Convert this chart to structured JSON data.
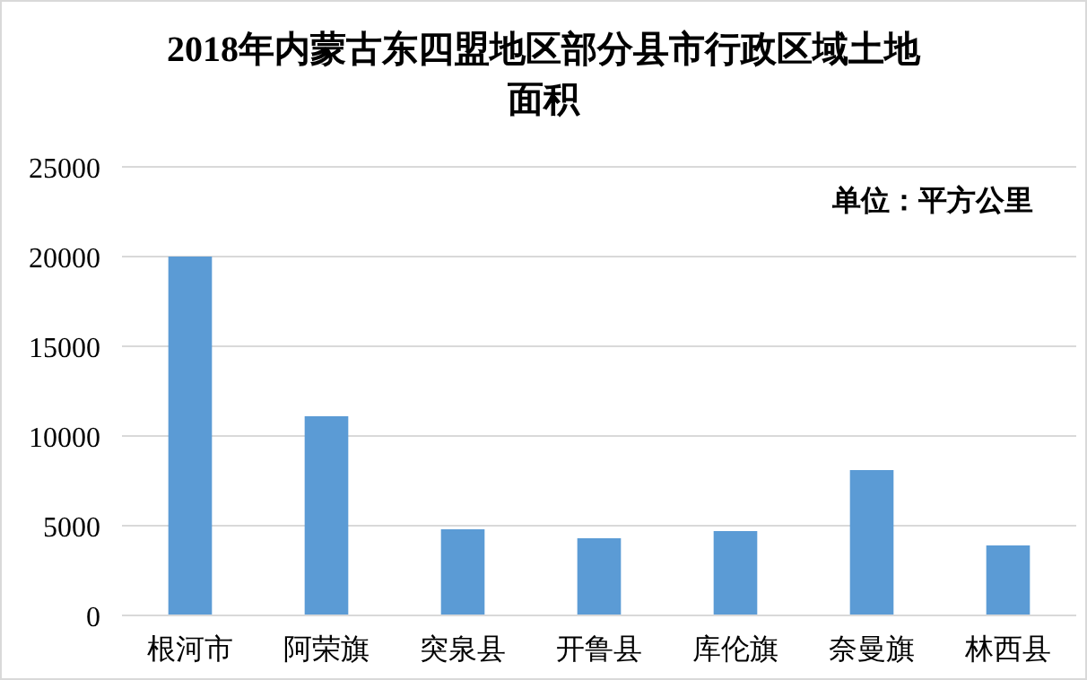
{
  "chart_data": {
    "type": "bar",
    "title": "2018年内蒙古东四盟地区部分县市行政区域土地面积",
    "categories": [
      "根河市",
      "阿荣旗",
      "突泉县",
      "开鲁县",
      "库伦旗",
      "奈曼旗",
      "林西县"
    ],
    "values": [
      20000,
      11100,
      4800,
      4300,
      4700,
      8100,
      3900
    ],
    "color": "#5b9bd5",
    "ylim": [
      0,
      25000
    ],
    "yticks": [
      0,
      5000,
      10000,
      15000,
      20000,
      25000
    ],
    "grid": "y",
    "annotations": [
      "单位：平方公里"
    ]
  }
}
